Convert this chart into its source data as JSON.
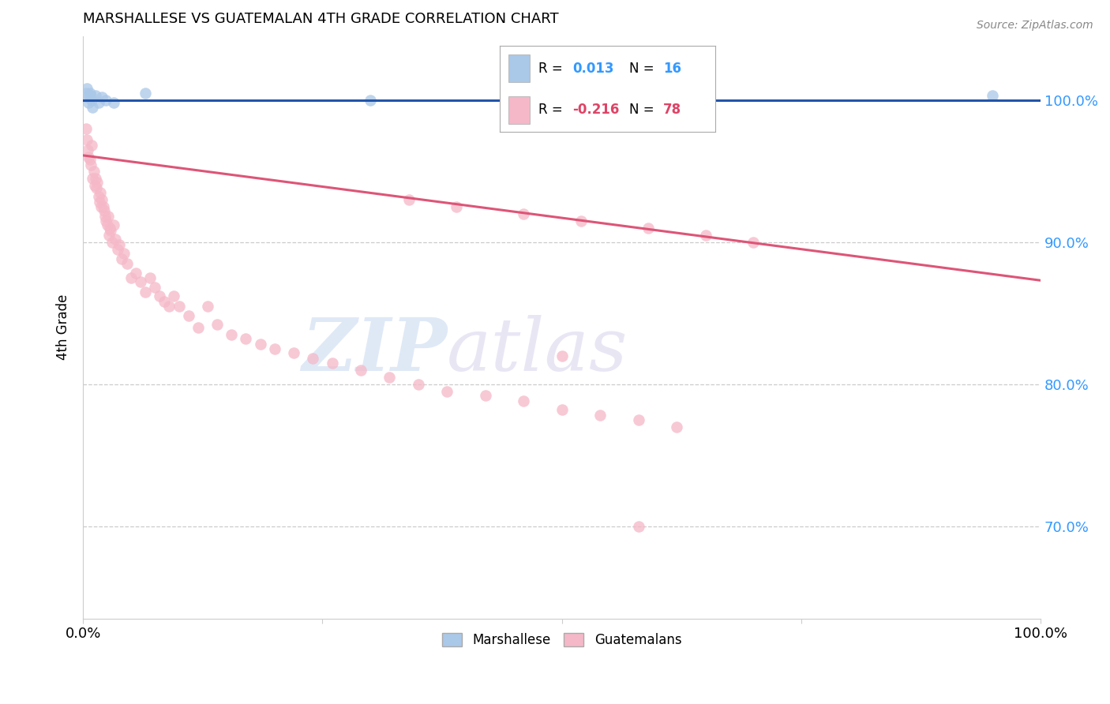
{
  "title": "MARSHALLESE VS GUATEMALAN 4TH GRADE CORRELATION CHART",
  "source": "Source: ZipAtlas.com",
  "ylabel": "4th Grade",
  "xlim": [
    0.0,
    1.0
  ],
  "ylim": [
    0.635,
    1.045
  ],
  "yticks": [
    0.7,
    0.8,
    0.9,
    1.0
  ],
  "ytick_labels": [
    "70.0%",
    "80.0%",
    "90.0%",
    "100.0%"
  ],
  "grid_color": "#cccccc",
  "background_color": "#ffffff",
  "marshallese_color": "#aac8e8",
  "guatemalan_color": "#f5b8c8",
  "marshallese_line_color": "#2255aa",
  "guatemalan_line_color": "#dd5577",
  "marker_size": 110,
  "marker_alpha": 0.75,
  "watermark_zip": "ZIP",
  "watermark_atlas": "atlas",
  "marshallese_x": [
    0.003,
    0.004,
    0.005,
    0.006,
    0.007,
    0.008,
    0.009,
    0.01,
    0.013,
    0.016,
    0.02,
    0.024,
    0.032,
    0.065,
    0.3,
    0.95
  ],
  "marshallese_y": [
    1.005,
    1.008,
    1.002,
    0.998,
    1.005,
    1.003,
    1.0,
    0.995,
    1.003,
    0.998,
    1.002,
    1.0,
    0.998,
    1.005,
    1.0,
    1.003
  ],
  "guatemalan_trend_x0": 0.0,
  "guatemalan_trend_y0": 0.961,
  "guatemalan_trend_x1": 1.0,
  "guatemalan_trend_y1": 0.873,
  "marshallese_trend_y": 1.0,
  "guat_pts_x": [
    0.003,
    0.004,
    0.005,
    0.006,
    0.007,
    0.008,
    0.009,
    0.01,
    0.011,
    0.012,
    0.013,
    0.014,
    0.015,
    0.016,
    0.017,
    0.018,
    0.019,
    0.02,
    0.021,
    0.022,
    0.023,
    0.024,
    0.025,
    0.026,
    0.027,
    0.028,
    0.029,
    0.03,
    0.032,
    0.034,
    0.036,
    0.038,
    0.04,
    0.043,
    0.046,
    0.05,
    0.055,
    0.06,
    0.065,
    0.07,
    0.075,
    0.08,
    0.085,
    0.09,
    0.095,
    0.1,
    0.11,
    0.12,
    0.13,
    0.14,
    0.155,
    0.17,
    0.185,
    0.2,
    0.22,
    0.24,
    0.26,
    0.29,
    0.32,
    0.35,
    0.38,
    0.42,
    0.46,
    0.5,
    0.54,
    0.58,
    0.62,
    0.34,
    0.39,
    0.46,
    0.52,
    0.59,
    0.65,
    0.7,
    0.58,
    0.5
  ],
  "guat_pts_y": [
    0.98,
    0.972,
    0.965,
    0.96,
    0.958,
    0.954,
    0.968,
    0.945,
    0.95,
    0.94,
    0.945,
    0.938,
    0.942,
    0.932,
    0.928,
    0.935,
    0.925,
    0.93,
    0.925,
    0.922,
    0.918,
    0.915,
    0.912,
    0.918,
    0.905,
    0.91,
    0.908,
    0.9,
    0.912,
    0.902,
    0.895,
    0.898,
    0.888,
    0.892,
    0.885,
    0.875,
    0.878,
    0.872,
    0.865,
    0.875,
    0.868,
    0.862,
    0.858,
    0.855,
    0.862,
    0.855,
    0.848,
    0.84,
    0.855,
    0.842,
    0.835,
    0.832,
    0.828,
    0.825,
    0.822,
    0.818,
    0.815,
    0.81,
    0.805,
    0.8,
    0.795,
    0.792,
    0.788,
    0.782,
    0.778,
    0.775,
    0.77,
    0.93,
    0.925,
    0.92,
    0.915,
    0.91,
    0.905,
    0.9,
    0.7,
    0.82
  ]
}
